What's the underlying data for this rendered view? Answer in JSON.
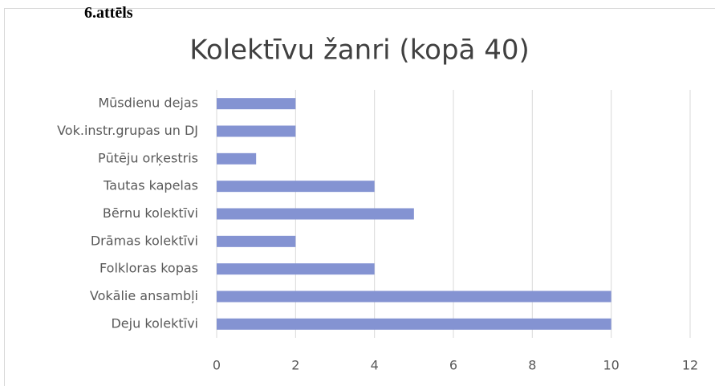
{
  "caption": "6.attēls",
  "chart_data": {
    "type": "bar",
    "orientation": "horizontal",
    "title": "Kolektīvu žanri (kopā 40)",
    "categories": [
      "Mūsdienu dejas",
      "Vok.instr.grupas un DJ",
      "Pūtēju orķestris",
      "Tautas kapelas",
      "Bērnu kolektīvi",
      "Drāmas kolektīvi",
      "Folkloras kopas",
      "Vokālie ansambļi",
      "Deju kolektīvi"
    ],
    "values": [
      2,
      2,
      1,
      4,
      5,
      2,
      4,
      10,
      10
    ],
    "color": "#8493d2",
    "xlim": [
      0,
      12
    ],
    "xticks": [
      0,
      2,
      4,
      6,
      8,
      10,
      12
    ],
    "grid": true
  }
}
